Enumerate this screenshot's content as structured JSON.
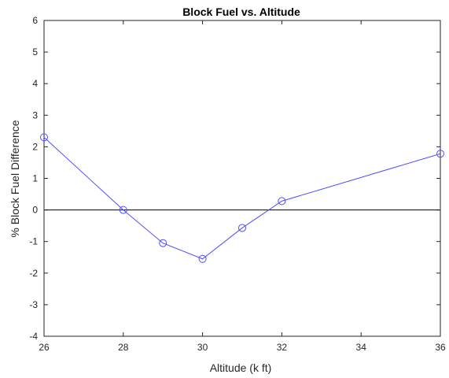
{
  "chart_data": {
    "type": "line",
    "title": "Block Fuel vs. Altitude",
    "xlabel": "Altitude (k ft)",
    "ylabel": "% Block Fuel Difference",
    "xlim": [
      26,
      36
    ],
    "ylim": [
      -4,
      6
    ],
    "xticks": [
      "26",
      "28",
      "30",
      "32",
      "34",
      "36"
    ],
    "yticks": [
      "-4",
      "-3",
      "-2",
      "-1",
      "0",
      "1",
      "2",
      "3",
      "4",
      "5",
      "6"
    ],
    "grid": false,
    "baseline": 0,
    "series": [
      {
        "x": [
          26,
          28,
          29,
          30,
          31,
          32,
          36
        ],
        "y": [
          2.3,
          0.0,
          -1.05,
          -1.55,
          -0.57,
          0.28,
          1.78
        ],
        "marker": "circle"
      }
    ],
    "colors": {
      "line": "#4d4dff",
      "axes": "#262626",
      "baseline": "#000000"
    }
  }
}
